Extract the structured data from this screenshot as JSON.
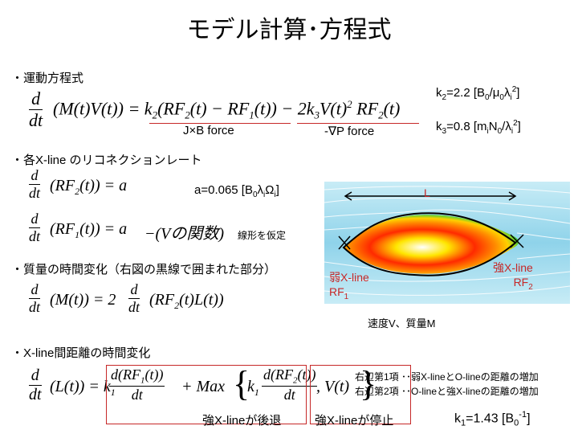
{
  "title": "モデル計算･方程式",
  "sections": {
    "motion": "・運動方程式",
    "reconnection": "・各X-line のリコネクションレート",
    "mass": "・質量の時間変化（右図の黒線で囲まれた部分）",
    "distance": "・X-line間距離の時間変化"
  },
  "eq1": {
    "lhs": "(M(t)V(t)) = k",
    "mid": "(RF",
    "mid2": "(t) − RF",
    "mid3": "(t)) − 2k",
    "rhs": "V(t)",
    "rhs2": " RF",
    "rhs3": "(t)"
  },
  "labels": {
    "jxb": "J×B force",
    "gradp": "-∇P force",
    "k2": "k2=2.2 [B0/μ0λi2]",
    "k3": "k3=0.8 [miN0/λi2]",
    "a": "a=0.065 [B0λiΩi]",
    "linear": "線形を仮定",
    "vfunc": "−(Vの関数)",
    "k1": "k1=1.43 [B0-1]"
  },
  "eq2": {
    "text": "(RF2(t)) = a"
  },
  "eq3": {
    "text": "(RF1(t)) = a"
  },
  "eq4": {
    "lhs": "(M(t)) = 2",
    "rhs": "(RF2(t)L(t))"
  },
  "eq5": {
    "lhs": "(L(t)) = k1",
    "mid": "+ Max",
    "brace_arg": ", V(t)"
  },
  "figure": {
    "L": "L",
    "weak": "弱X-line",
    "weak_rf": "RF1",
    "strong": "強X-line",
    "strong_rf": "RF2",
    "caption": "速度V、質量M"
  },
  "remarks": {
    "r1": "右辺第1項 ･･弱X-lineとO-lineの距離の増加",
    "r2": "右辺第2項 ･･O-lineと強X-lineの距離の増加"
  },
  "boxes": {
    "strong_retreat": "強X-lineが後退",
    "strong_stop": "強X-lineが停止"
  },
  "colors": {
    "accent_red": "#c62828"
  }
}
